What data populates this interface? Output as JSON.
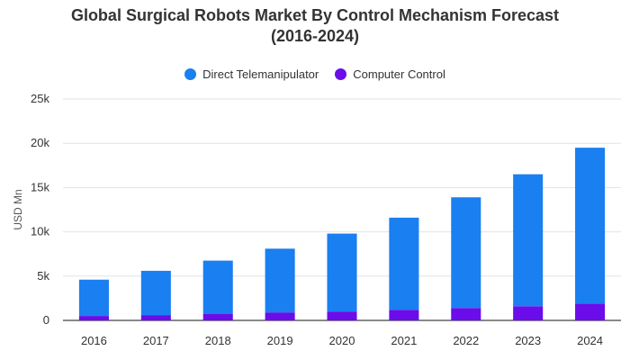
{
  "chart_data": {
    "type": "bar",
    "stacked": true,
    "title": "Global Surgical Robots Market By Control Mechanism Forecast (2016-2024)",
    "title_lines": [
      "Global Surgical Robots Market By Control Mechanism Forecast",
      "(2016-2024)"
    ],
    "xlabel": "",
    "ylabel": "USD Mn",
    "categories": [
      "2016",
      "2017",
      "2018",
      "2019",
      "2020",
      "2021",
      "2022",
      "2023",
      "2024"
    ],
    "series": [
      {
        "name": "Computer Control",
        "color": "#6a0dea",
        "values": [
          500,
          600,
          750,
          900,
          1000,
          1200,
          1400,
          1600,
          1900
        ]
      },
      {
        "name": "Direct Telemanipulator",
        "color": "#1a7ff0",
        "values": [
          4100,
          5000,
          6000,
          7200,
          8800,
          10400,
          12500,
          14900,
          17600
        ]
      }
    ],
    "legend": [
      "Direct Telemanipulator",
      "Computer Control"
    ],
    "legend_position": "top",
    "ylim": [
      0,
      25000
    ],
    "yticks": [
      0,
      5000,
      10000,
      15000,
      20000,
      25000
    ],
    "ytick_labels": [
      "0",
      "5k",
      "10k",
      "15k",
      "20k",
      "25k"
    ],
    "grid": true
  }
}
